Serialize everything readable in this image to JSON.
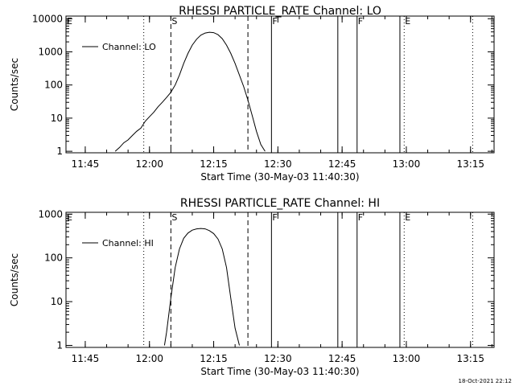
{
  "chart_data": [
    {
      "type": "line",
      "title": "RHESSI PARTICLE_RATE Channel: LO",
      "xlabel": "Start Time (30-May-03 11:40:30)",
      "ylabel": "Counts/sec",
      "y_scale": "log",
      "ylim": [
        0.9,
        12000
      ],
      "xlim": [
        "11:40:30",
        "13:20:30"
      ],
      "x_ticks": [
        "11:45",
        "12:00",
        "12:15",
        "12:30",
        "12:45",
        "13:00",
        "13:15"
      ],
      "y_ticks": [
        "1",
        "10",
        "100",
        "1000",
        "10000"
      ],
      "legend": {
        "placement": "top-left",
        "entries": [
          "Channel: LO"
        ]
      },
      "grid": false,
      "series": [
        {
          "name": "Channel: LO",
          "x": [
            "11:52:00",
            "11:53:00",
            "11:54:00",
            "11:55:00",
            "11:56:00",
            "11:57:00",
            "11:58:00",
            "11:59:00",
            "12:00:00",
            "12:01:00",
            "12:02:00",
            "12:03:00",
            "12:04:00",
            "12:05:00",
            "12:06:00",
            "12:07:00",
            "12:08:00",
            "12:09:00",
            "12:10:00",
            "12:11:00",
            "12:12:00",
            "12:13:00",
            "12:14:00",
            "12:15:00",
            "12:16:00",
            "12:17:00",
            "12:18:00",
            "12:19:00",
            "12:20:00",
            "12:21:00",
            "12:22:00",
            "12:23:00",
            "12:24:00",
            "12:25:00",
            "12:26:00",
            "12:27:00"
          ],
          "values": [
            1,
            1.3,
            1.8,
            2.2,
            3,
            4,
            5,
            8,
            11,
            15,
            22,
            30,
            42,
            60,
            100,
            200,
            450,
            900,
            1600,
            2400,
            3200,
            3700,
            3900,
            3800,
            3300,
            2500,
            1600,
            900,
            450,
            200,
            90,
            35,
            12,
            4,
            1.6,
            1
          ]
        }
      ],
      "markers": [
        {
          "label": "E",
          "x": "11:40:30",
          "style": "dotted"
        },
        {
          "label": "",
          "x": "11:58:40",
          "style": "dotted"
        },
        {
          "label": "S",
          "x": "12:05:00",
          "style": "dashed"
        },
        {
          "label": "",
          "x": "12:23:00",
          "style": "dashed"
        },
        {
          "label": "F",
          "x": "12:28:30",
          "style": "solid"
        },
        {
          "label": "",
          "x": "12:44:00",
          "style": "solid"
        },
        {
          "label": "F",
          "x": "12:48:30",
          "style": "solid"
        },
        {
          "label": "",
          "x": "12:58:30",
          "style": "solid"
        },
        {
          "label": "E",
          "x": "12:59:30",
          "style": "dotted"
        },
        {
          "label": "",
          "x": "13:15:30",
          "style": "dotted"
        }
      ]
    },
    {
      "type": "line",
      "title": "RHESSI PARTICLE_RATE Channel: HI",
      "xlabel": "Start Time (30-May-03 11:40:30)",
      "ylabel": "Counts/sec",
      "y_scale": "log",
      "ylim": [
        0.9,
        1100
      ],
      "xlim": [
        "11:40:30",
        "13:20:30"
      ],
      "x_ticks": [
        "11:45",
        "12:00",
        "12:15",
        "12:30",
        "12:45",
        "13:00",
        "13:15"
      ],
      "y_ticks": [
        "1",
        "10",
        "100",
        "1000"
      ],
      "legend": {
        "placement": "top-left",
        "entries": [
          "Channel: HI"
        ]
      },
      "grid": false,
      "series": [
        {
          "name": "Channel: HI",
          "x": [
            "12:03:30",
            "12:04:00",
            "12:05:00",
            "12:06:00",
            "12:07:00",
            "12:08:00",
            "12:09:00",
            "12:10:00",
            "12:11:00",
            "12:12:00",
            "12:13:00",
            "12:14:00",
            "12:15:00",
            "12:16:00",
            "12:17:00",
            "12:18:00",
            "12:19:00",
            "12:20:00",
            "12:21:00"
          ],
          "values": [
            1,
            2,
            12,
            60,
            160,
            280,
            370,
            430,
            460,
            470,
            460,
            420,
            360,
            270,
            160,
            60,
            12,
            2.5,
            1
          ]
        }
      ],
      "markers": [
        {
          "label": "E",
          "x": "11:40:30",
          "style": "dotted"
        },
        {
          "label": "",
          "x": "11:58:40",
          "style": "dotted"
        },
        {
          "label": "S",
          "x": "12:05:00",
          "style": "dashed"
        },
        {
          "label": "",
          "x": "12:23:00",
          "style": "dashed"
        },
        {
          "label": "F",
          "x": "12:28:30",
          "style": "solid"
        },
        {
          "label": "",
          "x": "12:44:00",
          "style": "solid"
        },
        {
          "label": "F",
          "x": "12:48:30",
          "style": "solid"
        },
        {
          "label": "",
          "x": "12:58:30",
          "style": "solid"
        },
        {
          "label": "E",
          "x": "12:59:30",
          "style": "dotted"
        },
        {
          "label": "",
          "x": "13:15:30",
          "style": "dotted"
        }
      ]
    }
  ],
  "footer": {
    "timestamp": "18-Oct-2021 22:12"
  },
  "colors": {
    "background": "#ffffff",
    "foreground": "#000000"
  }
}
